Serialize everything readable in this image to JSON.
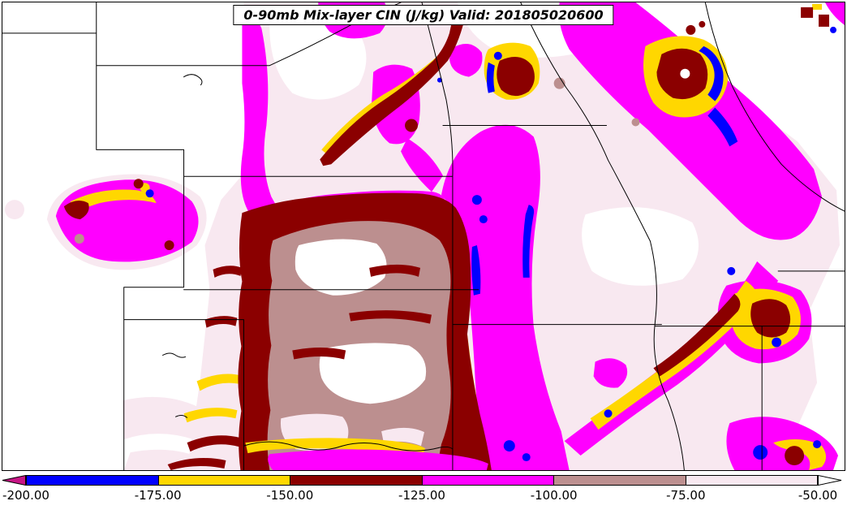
{
  "title_box": {
    "text": "0-90mb Mix-layer CIN (J/kg) Valid: 201805020600"
  },
  "chart_data": {
    "type": "heatmap",
    "subtype": "filled-contour-weather-map",
    "title": "0-90mb Mix-layer CIN (J/kg) Valid: 201805020600",
    "variable": "0-90mb Mix-layer CIN",
    "units": "J/kg",
    "valid_time": "201805020600",
    "region": "Central United States with state borders",
    "levels": [
      -200,
      -175,
      -150,
      -125,
      -100,
      -75,
      -50
    ],
    "colorbar": {
      "tick_labels": [
        "-200.00",
        "-175.00",
        "-150.00",
        "-125.00",
        "-100.00",
        "-75.00",
        "-50.00"
      ],
      "extend_low_color": "#C71585",
      "extend_high_color": "#FFFFFF",
      "segment_colors": [
        "#0000FF",
        "#FFD700",
        "#8B0000",
        "#FF00FF",
        "#BC8F8F",
        "#F8E8F0"
      ],
      "segment_ranges": [
        "-200 to -175",
        "-175 to -150",
        "-150 to -125",
        "-125 to -100",
        "-100 to -75",
        "-75 to -50"
      ],
      "orientation": "horizontal-bottom"
    },
    "palette": {
      "background": "#FFFFFF",
      "state_borders": "#000000"
    },
    "observed_pattern": "Strongest CIN (dark red, -150 to -125 and below) over the central/southern Plains with a rosy-brown and near-white core; magenta (-125 to -100) bands along the Missouri valley, a NE-SW band over the upper Midwest, and convective-line features over the mid-South; pale pink (-75 to -50) broadly surrounding."
  }
}
